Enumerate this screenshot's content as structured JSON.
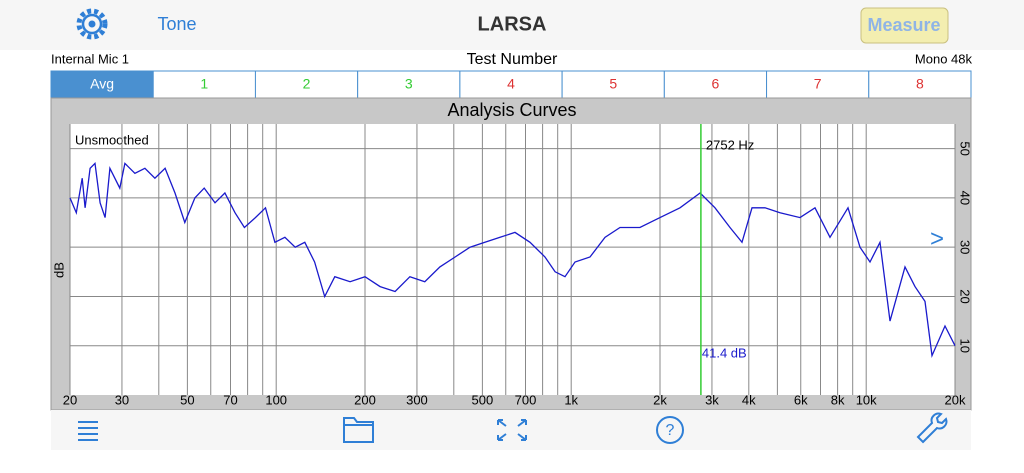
{
  "header": {
    "title": "LARSA",
    "left_button": "Tone",
    "right_button": "Measure"
  },
  "info": {
    "input": "Internal Mic 1",
    "center": "Test Number",
    "format": "Mono 48k"
  },
  "tabs": [
    {
      "label": "Avg",
      "color": "#ffffff"
    },
    {
      "label": "1",
      "color": "#33cc33"
    },
    {
      "label": "2",
      "color": "#33cc33"
    },
    {
      "label": "3",
      "color": "#33cc33"
    },
    {
      "label": "4",
      "color": "#dd3333"
    },
    {
      "label": "5",
      "color": "#dd3333"
    },
    {
      "label": "6",
      "color": "#dd3333"
    },
    {
      "label": "7",
      "color": "#dd3333"
    },
    {
      "label": "8",
      "color": "#dd3333"
    }
  ],
  "chart_data": {
    "type": "line",
    "title": "Analysis Curves",
    "annotation": "Unsmoothed",
    "y_label": "dB",
    "log_x": true,
    "grid": true,
    "xlim": [
      20,
      20000
    ],
    "ylim": [
      0,
      55
    ],
    "xticks": [
      20,
      30,
      50,
      70,
      100,
      200,
      300,
      500,
      700,
      {
        "value": 1000,
        "label": "1k"
      },
      {
        "value": 2000,
        "label": "2k"
      },
      {
        "value": 3000,
        "label": "3k"
      },
      {
        "value": 4000,
        "label": "4k"
      },
      {
        "value": 6000,
        "label": "6k"
      },
      {
        "value": 8000,
        "label": "8k"
      },
      {
        "value": 10000,
        "label": "10k"
      },
      {
        "value": 20000,
        "label": "20k"
      }
    ],
    "xminor_ticks": [
      40,
      60,
      80,
      90,
      400,
      600,
      800,
      900,
      5000,
      7000,
      9000
    ],
    "yticks": [
      10,
      20,
      30,
      40,
      50
    ],
    "cursor": {
      "x": 2752,
      "label": "2752 Hz",
      "value": 41.4,
      "value_label": "41.4 dB",
      "color": "#33cc33"
    },
    "x": [
      20,
      21,
      22,
      22.5,
      23.4,
      24.3,
      25.3,
      26.3,
      27.3,
      29.5,
      30.7,
      33.2,
      35.9,
      38.8,
      42,
      45.4,
      49,
      53,
      57,
      62,
      67,
      72.5,
      78,
      85,
      92,
      99,
      107,
      116,
      125,
      135,
      146,
      158,
      178,
      200,
      225,
      253,
      284,
      319,
      359,
      404,
      454,
      510,
      574,
      645,
      725,
      815,
      882,
      953,
      1030,
      1158,
      1302,
      1464,
      1710,
      2000,
      2338,
      2734,
      3073,
      3455,
      3793,
      4102,
      4540,
      5104,
      5966,
      6708,
      7540,
      8678,
      9528,
      10304,
      11140,
      12040,
      13540,
      14640,
      15820,
      16710,
      18500,
      20000
    ],
    "series": [
      {
        "name": "Avg",
        "color": "#1a1acc",
        "values": [
          40,
          37,
          44,
          38,
          46,
          47,
          39,
          36,
          46,
          42,
          47,
          45,
          46,
          44,
          46,
          41,
          35,
          40,
          42,
          39,
          41,
          37,
          34,
          36,
          38,
          31,
          32,
          30,
          31,
          27,
          20,
          24,
          23,
          24,
          22,
          21,
          24,
          23,
          26,
          28,
          30,
          31,
          32,
          33,
          31,
          28,
          25,
          24,
          27,
          28,
          32,
          34,
          34,
          36,
          38,
          41,
          38,
          34,
          31,
          38,
          38,
          37,
          36,
          38,
          32,
          38,
          30,
          27,
          31,
          15,
          26,
          22,
          19,
          8,
          14,
          10
        ]
      }
    ]
  }
}
